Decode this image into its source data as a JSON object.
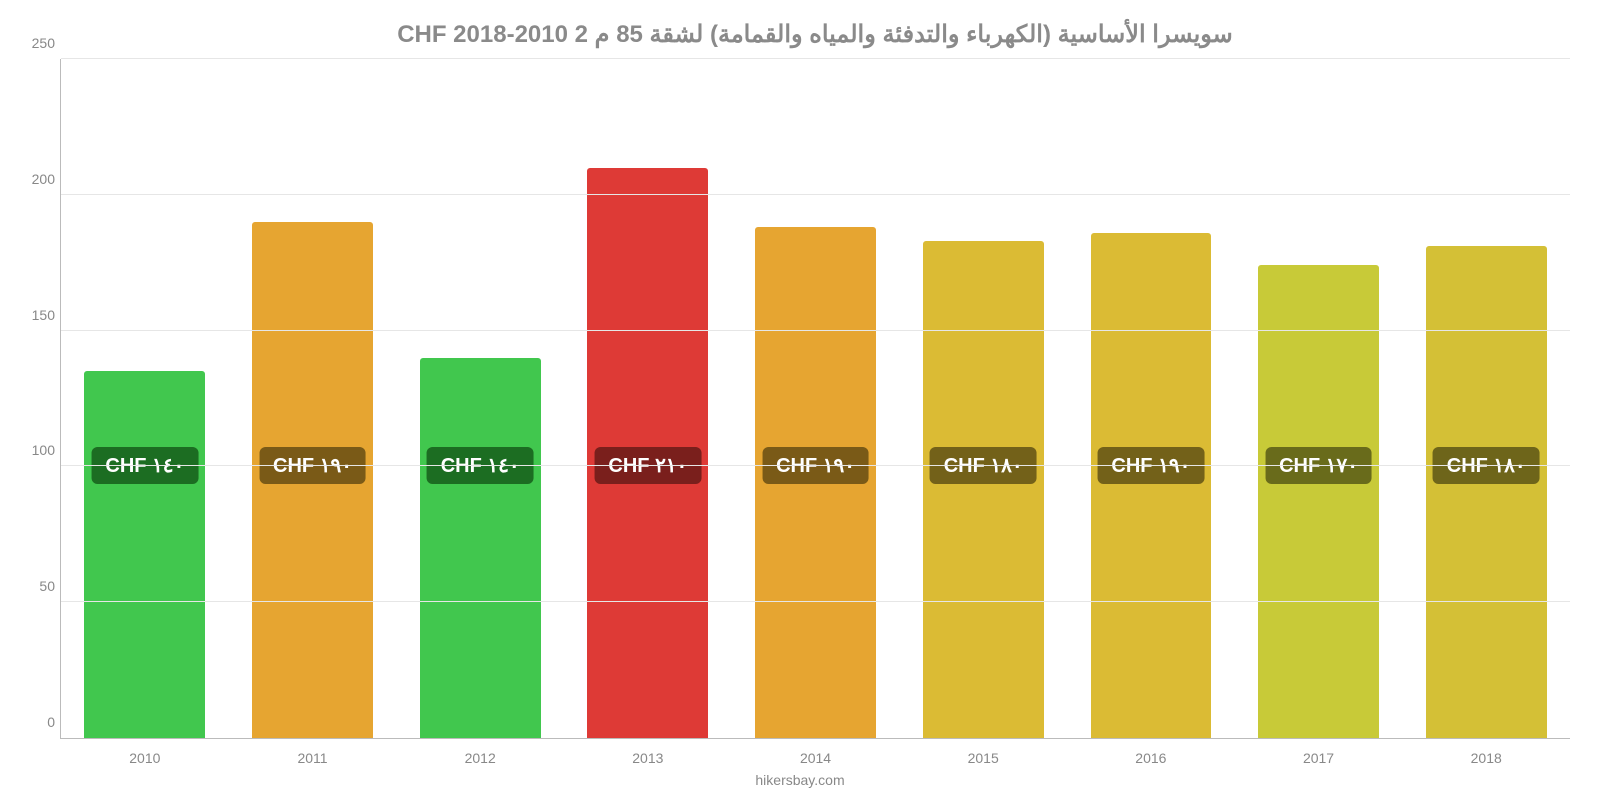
{
  "chart": {
    "type": "bar",
    "title": "سويسرا الأساسية (الكهرباء والتدفئة والمياه والقمامة) لشقة 85 م 2 CHF 2018-2010",
    "title_fontsize": 24,
    "title_color": "#8a8a8a",
    "background_color": "#ffffff",
    "grid_color": "#e6e6e6",
    "axis_color": "#bbbbbb",
    "tick_font_color": "#888888",
    "tick_fontsize": 14,
    "ylim": [
      0,
      250
    ],
    "ytick_step": 50,
    "yticks": [
      "0",
      "50",
      "100",
      "150",
      "200",
      "250"
    ],
    "categories": [
      "2010",
      "2011",
      "2012",
      "2013",
      "2014",
      "2015",
      "2016",
      "2017",
      "2018"
    ],
    "values": [
      135,
      190,
      140,
      210,
      188,
      183,
      186,
      174,
      181
    ],
    "bar_colors": [
      "#41c74e",
      "#e6a531",
      "#41c74e",
      "#de3a36",
      "#e6a531",
      "#dbbb34",
      "#dbbb34",
      "#c8ca38",
      "#d4c036"
    ],
    "bar_width_pct": 72,
    "value_labels": [
      "١٤٠ CHF",
      "١٩٠ CHF",
      "١٤٠ CHF",
      "٢١٠ CHF",
      "١٩٠ CHF",
      "١٨٠ CHF",
      "١٩٠ CHF",
      "١٧٠ CHF",
      "١٨٠ CHF"
    ],
    "value_label_bg": [
      "#1c6d22",
      "#7a5a17",
      "#1c6d22",
      "#7a1f1c",
      "#7a5a17",
      "#736119",
      "#736119",
      "#696b1b",
      "#6e651a"
    ],
    "value_label_fontsize": 20,
    "value_label_color": "#ffffff",
    "footer": "hikersbay.com",
    "footer_color": "#888888"
  }
}
